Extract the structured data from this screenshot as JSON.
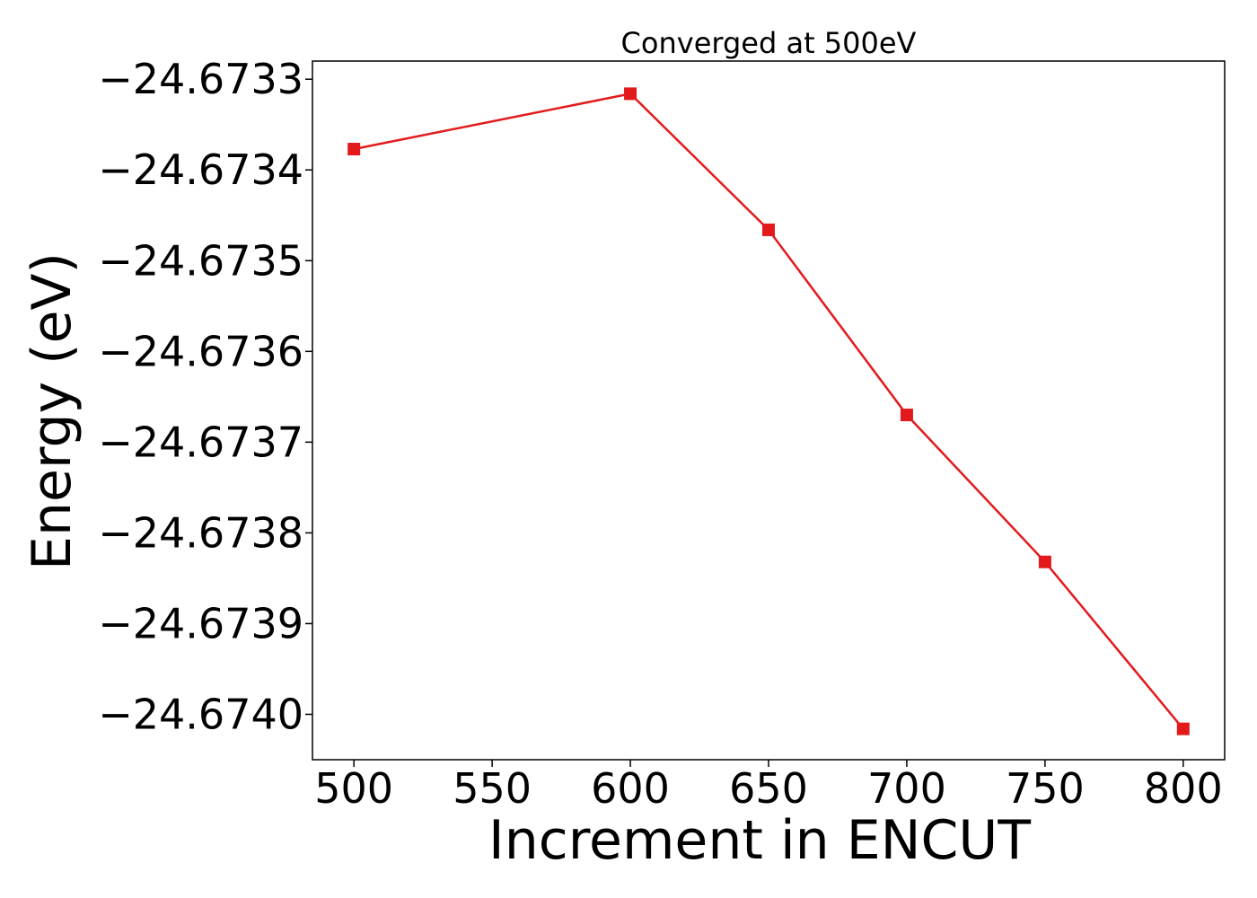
{
  "chart_data": {
    "type": "line",
    "title": "Converged at 500eV",
    "xlabel": "Increment in ENCUT",
    "ylabel": "Energy (eV)",
    "x": [
      500,
      600,
      650,
      700,
      750,
      800
    ],
    "series": [
      {
        "values": [
          -24.673377,
          -24.673316,
          -24.673466,
          -24.67367,
          -24.673832,
          -24.674016
        ],
        "color": "#e31a1c",
        "marker": "square"
      }
    ],
    "xlim": [
      485,
      815
    ],
    "ylim": [
      -24.67405,
      -24.67328
    ],
    "xticks": [
      500,
      550,
      600,
      650,
      700,
      750,
      800
    ],
    "xtick_labels": [
      "500",
      "550",
      "600",
      "650",
      "700",
      "750",
      "800"
    ],
    "yticks": [
      -24.674,
      -24.6739,
      -24.6738,
      -24.6737,
      -24.6736,
      -24.6735,
      -24.6734,
      -24.6733
    ],
    "ytick_labels": [
      "−24.6740",
      "−24.6739",
      "−24.6738",
      "−24.6737",
      "−24.6736",
      "−24.6735",
      "−24.6734",
      "−24.6733"
    ],
    "grid": false,
    "legend": "none"
  }
}
